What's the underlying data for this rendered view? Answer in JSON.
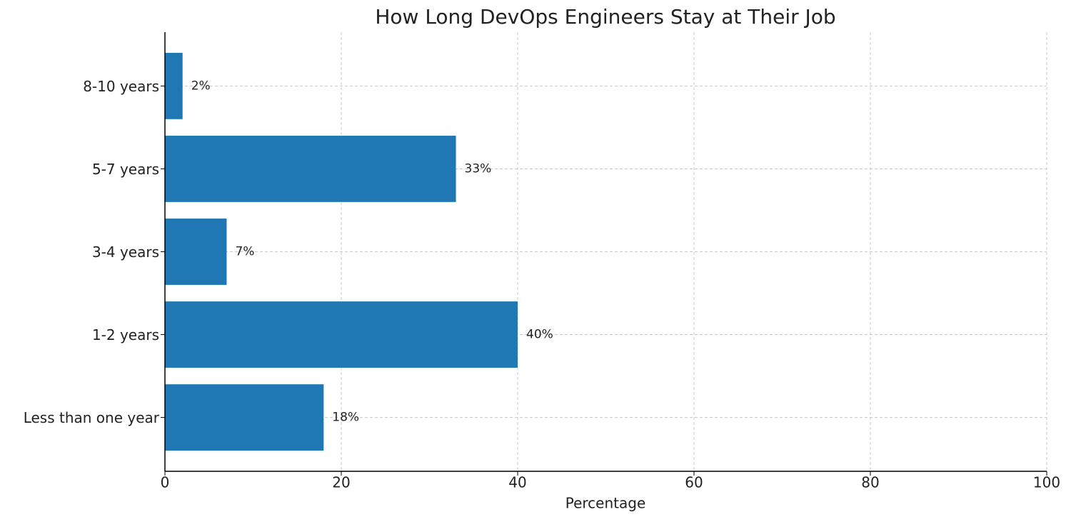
{
  "chart_data": {
    "type": "bar",
    "orientation": "horizontal",
    "title": "How Long DevOps Engineers Stay at Their Job",
    "x_label": "Percentage",
    "categories": [
      "Less than one year",
      "1-2 years",
      "3-4 years",
      "5-7 years",
      "8-10 years"
    ],
    "values": [
      18,
      40,
      7,
      33,
      2
    ],
    "value_labels": [
      "18%",
      "40%",
      "7%",
      "33%",
      "2%"
    ],
    "color": "#1f77b4",
    "xlim": [
      0,
      100
    ],
    "xticks": [
      0,
      20,
      40,
      60,
      80,
      100
    ],
    "grid": true
  }
}
